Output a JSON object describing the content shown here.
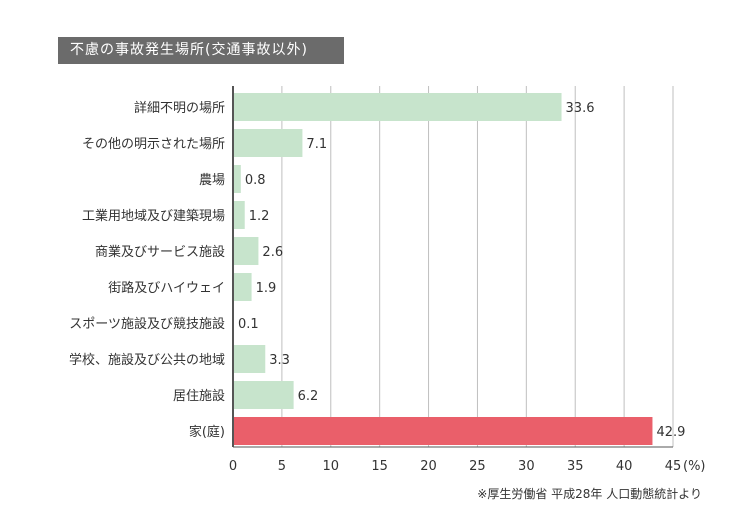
{
  "title": "不慮の事故発生場所(交通事故以外)",
  "source": "※厚生労働省 平成28年 人口動態統計より",
  "colors": {
    "bar": "#c7e4cc",
    "highlight": "#ea5f6a",
    "grid": "#bfbfbf",
    "title_bg": "#6b6b6b"
  },
  "chart_data": {
    "type": "bar",
    "orientation": "horizontal",
    "title": "不慮の事故発生場所(交通事故以外)",
    "categories": [
      "詳細不明の場所",
      "その他の明示された場所",
      "農場",
      "工業用地域及び建築現場",
      "商業及びサービス施設",
      "街路及びハイウェイ",
      "スポーツ施設及び競技施設",
      "学校、施設及び公共の地域",
      "居住施設",
      "家(庭)"
    ],
    "values": [
      33.6,
      7.1,
      0.8,
      1.2,
      2.6,
      1.9,
      0.1,
      3.3,
      6.2,
      42.9
    ],
    "value_labels": [
      "33.6",
      "7.1",
      "0.8",
      "1.2",
      "2.6",
      "1.9",
      "0.1",
      "3.3",
      "6.2",
      "42.9"
    ],
    "highlight_index": 9,
    "xlim": [
      0,
      45
    ],
    "xticks": [
      0,
      5,
      10,
      15,
      20,
      25,
      30,
      35,
      40,
      45
    ],
    "xtick_labels": [
      "0",
      "5",
      "10",
      "15",
      "20",
      "25",
      "30",
      "35",
      "40",
      "45"
    ],
    "xunit": "(%)",
    "grid": true
  }
}
